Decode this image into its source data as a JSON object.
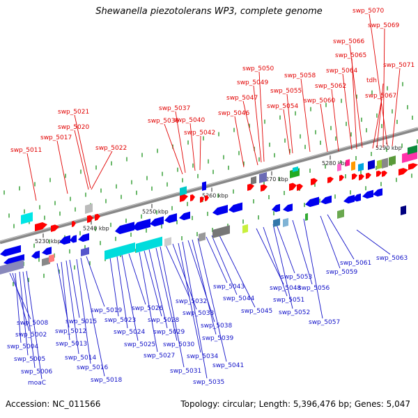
{
  "title": "Shewanella piezotolerans WP3, complete genome",
  "footer": {
    "accession": "Accession: NC_011566",
    "stats": "Topology: circular; Length: 5,396,476 bp; Genes: 5,047"
  },
  "axis_ticks": [
    "5230 kbp",
    "5240 kbp",
    "5250 kbp",
    "5260 kbp",
    "5270 kbp",
    "5280 kbp",
    "5290 kbp"
  ],
  "top_labels": [
    "swp_5011",
    "swp_5017",
    "swp_5020",
    "swp_5021",
    "swp_5022",
    "swp_5036",
    "swp_5037",
    "swp_5040",
    "swp_5042",
    "swp_5046",
    "swp_5047",
    "swp_5049",
    "swp_5050",
    "swp_5054",
    "swp_5055",
    "swp_5058",
    "swp_5060",
    "swp_5062",
    "swp_5064",
    "swp_5065",
    "swp_5066",
    "swp_5067",
    "tdh",
    "swp_5069",
    "swp_5070",
    "swp_5071"
  ],
  "bottom_labels": [
    "swp_5002",
    "swp_5004",
    "swp_5005",
    "swp_5006",
    "moaC",
    "swp_5008",
    "swp_5012",
    "swp_5013",
    "swp_5014",
    "swp_5015",
    "swp_5016",
    "swp_5018",
    "swp_5019",
    "swp_5023",
    "swp_5024",
    "swp_5025",
    "swp_5026",
    "swp_5027",
    "swp_5028",
    "swp_5029",
    "swp_5030",
    "swp_5031",
    "swp_5032",
    "swp_5033",
    "swp_5034",
    "swp_5035",
    "swp_5038",
    "swp_5039",
    "swp_5041",
    "swp_5043",
    "swp_5044",
    "swp_5045",
    "swp_5048",
    "swp_5051",
    "swp_5052",
    "swp_5053",
    "swp_5056",
    "swp_5057",
    "swp_5059",
    "swp_5061",
    "swp_5063"
  ],
  "colors": {
    "forward_gene": "#ff0000",
    "reverse_gene": "#0000ee",
    "top_label": "#e10000",
    "bottom_label": "#1010c8",
    "backbone": "#888888",
    "tick": "#2a9a2a"
  }
}
